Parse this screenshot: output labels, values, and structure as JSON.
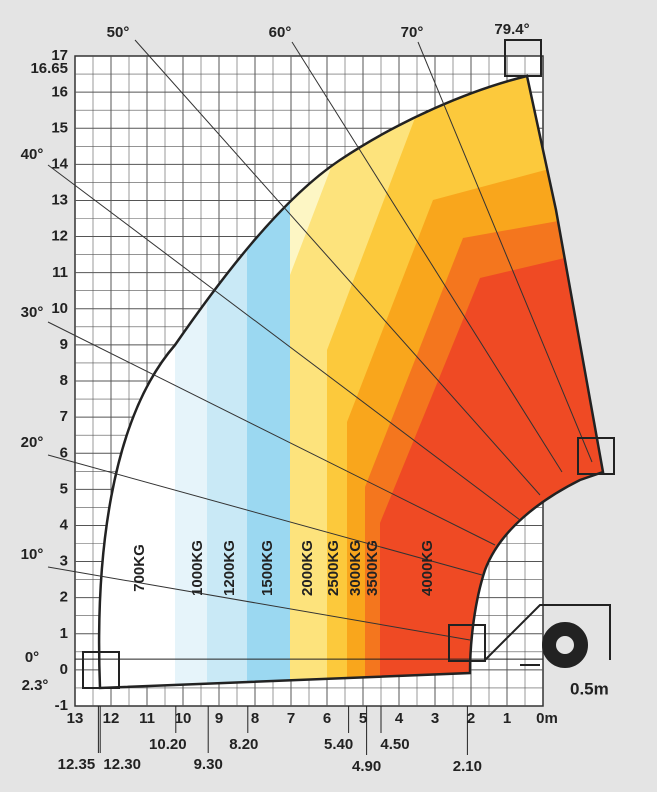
{
  "y_axis": {
    "labels": [
      "17",
      "16.65",
      "16",
      "15",
      "14",
      "13",
      "12",
      "11",
      "10",
      "9",
      "8",
      "7",
      "6",
      "5",
      "4",
      "3",
      "2",
      "1",
      "0",
      "-1"
    ]
  },
  "x_axis": {
    "labels": [
      "13",
      "12",
      "11",
      "10",
      "9",
      "8",
      "7",
      "6",
      "5",
      "4",
      "3",
      "2",
      "1",
      "0m"
    ]
  },
  "distance_marks": [
    "12.35",
    "12.30",
    "10.20",
    "9.30",
    "8.20",
    "5.40",
    "4.90",
    "4.50",
    "2.10"
  ],
  "angles": [
    "79.4°",
    "70°",
    "60°",
    "50°",
    "40°",
    "30°",
    "20°",
    "10°",
    "0°",
    "2.3°"
  ],
  "load_zones": [
    "700KG",
    "1000KG",
    "1200KG",
    "1500KG",
    "2000KG",
    "2500KG",
    "3000KG",
    "3500KG",
    "4000KG"
  ],
  "scale_label": "0.5m"
}
